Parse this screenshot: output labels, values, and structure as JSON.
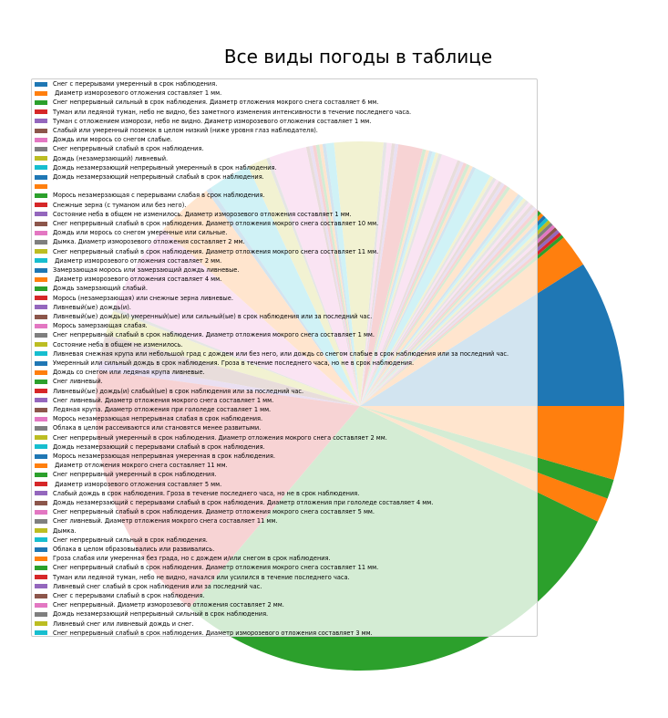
{
  "chart_data": {
    "type": "pie",
    "title": "Все виды погоды в таблице",
    "legend_placement": "upper-left",
    "slices": [
      {
        "label": "Снег с перерывами умеренный в срок наблюдения.",
        "value": 9.0,
        "color": "#1f77b4"
      },
      {
        "label": "  Диаметр изморозевого отложения составляет 1 мм.",
        "value": 2.0,
        "color": "#ff7f0e"
      },
      {
        "label": "Снег непрерывный сильный в срок наблюдения.  Диаметр отложения мокрого снега составляет 6 мм.",
        "value": 0.2,
        "color": "#2ca02c"
      },
      {
        "label": "Туман или ледяной туман, небо не видно, без заметного изменения интенсивности в течение последнего часа.",
        "value": 0.2,
        "color": "#d62728"
      },
      {
        "label": "Туман с отложением изморози, небо не видно.  Диаметр изморозевого отложения составляет 1 мм.",
        "value": 0.2,
        "color": "#9467bd"
      },
      {
        "label": "Слабый или умеренный поземок в целом низкий (ниже уровня глаз наблюдателя).",
        "value": 0.2,
        "color": "#8c564b"
      },
      {
        "label": "Дождь или морось со снегом слабые.",
        "value": 0.2,
        "color": "#e377c2"
      },
      {
        "label": "Снег непрерывный слабый в срок наблюдения.",
        "value": 0.2,
        "color": "#7f7f7f"
      },
      {
        "label": "Дождь (незамерзающий) ливневый.",
        "value": 0.2,
        "color": "#bcbd22"
      },
      {
        "label": "Дождь незамерзающий непрерывный умеренный в срок наблюдения.",
        "value": 0.2,
        "color": "#17becf"
      },
      {
        "label": "Дождь незамерзающий непрерывный слабый в срок наблюдения.",
        "value": 0.2,
        "color": "#1f77b4"
      },
      {
        "label": "",
        "value": 0.2,
        "color": "#ff7f0e"
      },
      {
        "label": "Морось незамерзающая с перерывами слабая в срок наблюдения.",
        "value": 0.2,
        "color": "#2ca02c"
      },
      {
        "label": "Снежные зерна (с туманом или без него).",
        "value": 0.2,
        "color": "#d62728"
      },
      {
        "label": "Состояние неба в общем не изменилось.  Диаметр изморозевого отложения составляет 1 мм.",
        "value": 0.2,
        "color": "#9467bd"
      },
      {
        "label": "Снег непрерывный слабый в срок наблюдения.  Диаметр отложения мокрого снега составляет 10 мм.",
        "value": 0.2,
        "color": "#8c564b"
      },
      {
        "label": "Дождь или морось со снегом умеренные или сильные.",
        "value": 0.2,
        "color": "#e377c2"
      },
      {
        "label": "Дымка.  Диаметр изморозевого отложения составляет 2 мм.",
        "value": 0.2,
        "color": "#7f7f7f"
      },
      {
        "label": "Снег непрерывный слабый в срок наблюдения.  Диаметр отложения мокрого снега составляет 11 мм.",
        "value": 0.2,
        "color": "#bcbd22"
      },
      {
        "label": "  Диаметр изморозевого отложения составляет 2 мм.",
        "value": 0.2,
        "color": "#17becf"
      },
      {
        "label": "Замерзающая морось или замерзающий дождь ливневые.",
        "value": 0.2,
        "color": "#1f77b4"
      },
      {
        "label": "  Диаметр изморозевого отложения составляет 4 мм.",
        "value": 0.6,
        "color": "#ff7f0e"
      },
      {
        "label": "Дождь замерзающий слабый.",
        "value": 0.2,
        "color": "#2ca02c"
      },
      {
        "label": "Морось (незамерзающая) или снежные зерна ливневые.",
        "value": 0.2,
        "color": "#d62728"
      },
      {
        "label": "Ливневый(ые) дождь(и).",
        "value": 0.2,
        "color": "#9467bd"
      },
      {
        "label": "Ливневый(ые) дождь(и) умеренный(ые) или сильный(ые) в срок наблюдения или за последний час.",
        "value": 0.2,
        "color": "#8c564b"
      },
      {
        "label": "Морось замерзающая слабая.",
        "value": 0.2,
        "color": "#e377c2"
      },
      {
        "label": "Снег непрерывный слабый в срок наблюдения.  Диаметр отложения мокрого снега составляет 1 мм.",
        "value": 0.2,
        "color": "#7f7f7f"
      },
      {
        "label": "Состояние неба в общем не изменилось.",
        "value": 0.2,
        "color": "#bcbd22"
      },
      {
        "label": "Ливневая снежная крупа или небольшой град с дождем или без него, или дождь со снегом слабые в срок наблюдения или за последний час.",
        "value": 1.0,
        "color": "#17becf"
      },
      {
        "label": "Умеренный или сильный дождь в срок наблюдения. Гроза в течение последнего часа, но не в срок наблюдения.",
        "value": 0.2,
        "color": "#1f77b4"
      },
      {
        "label": "Дождь со снегом или ледяная крупа ливневые.",
        "value": 0.2,
        "color": "#ff7f0e"
      },
      {
        "label": "Снег ливневый.",
        "value": 0.2,
        "color": "#2ca02c"
      },
      {
        "label": "Ливневый(ые) дождь(и) слабый(ые) в срок наблюдения или за последний час.",
        "value": 0.2,
        "color": "#d62728"
      },
      {
        "label": "Снег ливневый.  Диаметр отложения мокрого снега составляет 1 мм.",
        "value": 0.2,
        "color": "#9467bd"
      },
      {
        "label": "Ледяная крупа.  Диаметр отложения при гололеде составляет 1 мм.",
        "value": 0.2,
        "color": "#8c564b"
      },
      {
        "label": "Морось незамерзающая непрерывная слабая в срок наблюдения.",
        "value": 1.0,
        "color": "#e377c2"
      },
      {
        "label": "Облака в целом рассеиваются или становятся менее развитыми.",
        "value": 0.2,
        "color": "#7f7f7f"
      },
      {
        "label": "Снег непрерывный умеренный в срок наблюдения.  Диаметр отложения мокрого снега составляет 2 мм.",
        "value": 0.2,
        "color": "#bcbd22"
      },
      {
        "label": "Дождь незамерзающий с перерывами слабый в срок наблюдения.",
        "value": 0.2,
        "color": "#17becf"
      },
      {
        "label": "Морось незамерзающая непрерывная умеренная в срок наблюдения.",
        "value": 0.2,
        "color": "#1f77b4"
      },
      {
        "label": "  Диаметр отложения мокрого снега составляет 11 мм.",
        "value": 0.2,
        "color": "#ff7f0e"
      },
      {
        "label": "Снег непрерывный умеренный в срок наблюдения.",
        "value": 0.2,
        "color": "#2ca02c"
      },
      {
        "label": "  Диаметр изморозевого отложения составляет 5 мм.",
        "value": 1.5,
        "color": "#d62728"
      },
      {
        "label": "Слабый дождь в срок наблюдения. Гроза в течение последнего часа, но не в срок наблюдения.",
        "value": 0.2,
        "color": "#9467bd"
      },
      {
        "label": "Дождь незамерзающий с перерывами слабый в срок наблюдения.  Диаметр отложения при гололеде составляет 4 мм.",
        "value": 0.2,
        "color": "#8c564b"
      },
      {
        "label": "Снег непрерывный слабый в срок наблюдения.  Диаметр отложения мокрого снега составляет 5 мм.",
        "value": 0.3,
        "color": "#e377c2"
      },
      {
        "label": "Снег ливневый.  Диаметр отложения мокрого снега составляет 11 мм.",
        "value": 0.2,
        "color": "#7f7f7f"
      },
      {
        "label": "Дымка.",
        "value": 3.0,
        "color": "#bcbd22"
      },
      {
        "label": "Снег непрерывный сильный в срок наблюдения.",
        "value": 0.5,
        "color": "#17becf"
      },
      {
        "label": "Облака в целом образовывались или развивались.",
        "value": 0.2,
        "color": "#1f77b4"
      },
      {
        "label": "Гроза слабая или умеренная без града, но с дождем и/или снегом в срок наблюдения.",
        "value": 0.2,
        "color": "#ff7f0e"
      },
      {
        "label": "Снег непрерывный слабый в срок наблюдения.  Диаметр отложения мокрого снега составляет 11 мм.",
        "value": 0.2,
        "color": "#2ca02c"
      },
      {
        "label": "Туман или ледяной туман, небо не видно, начался или усилился в течение последнего часа.",
        "value": 0.2,
        "color": "#d62728"
      },
      {
        "label": "Ливневый снег слабый в срок наблюдения или за последний час.",
        "value": 0.2,
        "color": "#9467bd"
      },
      {
        "label": "Снег с перерывами слабый в срок наблюдения.",
        "value": 0.2,
        "color": "#8c564b"
      },
      {
        "label": "Снег непрерывный.  Диаметр изморозевого отложения составляет 2 мм.",
        "value": 2.3,
        "color": "#e377c2"
      },
      {
        "label": "Дождь незамерзающий непрерывный сильный в срок наблюдения.",
        "value": 0.2,
        "color": "#7f7f7f"
      },
      {
        "label": "Ливневый снег или ливневый дождь и снег.",
        "value": 1.2,
        "color": "#bcbd22"
      },
      {
        "label": "Снег непрерывный слабый в срок наблюдения.  Диаметр изморозевого отложения составляет 3 мм.",
        "value": 2.6,
        "color": "#17becf"
      },
      {
        "label": "",
        "value": 0.3,
        "color": "#1f77b4"
      },
      {
        "label": "",
        "value": 3.5,
        "color": "#ff7f0e"
      },
      {
        "label": "",
        "value": 5.6,
        "color": "#e377c2"
      },
      {
        "label": "",
        "value": 0.2,
        "color": "#7f7f7f"
      },
      {
        "label": "",
        "value": 1.5,
        "color": "#bcbd22"
      },
      {
        "label": "",
        "value": 1.6,
        "color": "#8c564b"
      },
      {
        "label": "",
        "value": 0.6,
        "color": "#9467bd"
      },
      {
        "label": "",
        "value": 16.0,
        "color": "#d62728"
      },
      {
        "label": "",
        "value": 29.0,
        "color": "#2ca02c"
      },
      {
        "label": "",
        "value": 1.5,
        "color": "#ff7f0e"
      },
      {
        "label": "",
        "value": 1.2,
        "color": "#2ca02c"
      },
      {
        "label": "",
        "value": 4.5,
        "color": "#ff7f0e"
      }
    ]
  }
}
